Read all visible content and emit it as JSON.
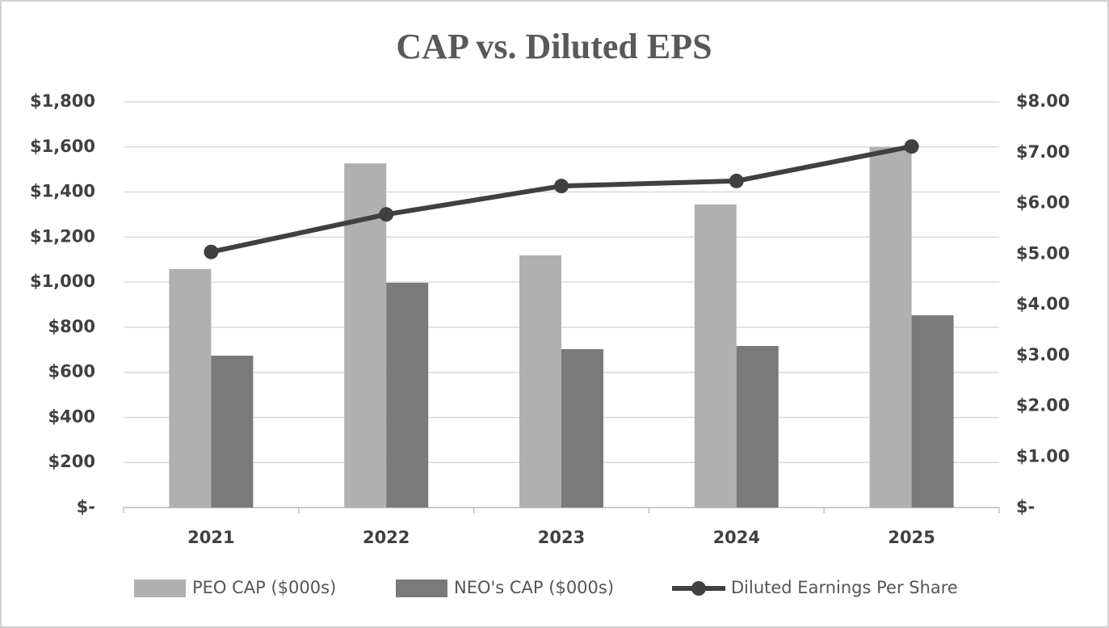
{
  "chart_data": {
    "type": "bar",
    "title": "CAP vs. Diluted EPS",
    "categories": [
      "2021",
      "2022",
      "2023",
      "2024",
      "2025"
    ],
    "series": [
      {
        "name": "PEO CAP ($000s)",
        "color": "#b0b0b0",
        "values": [
          1058,
          1527,
          1119,
          1345,
          1599
        ]
      },
      {
        "name": "NEO's CAP ($000s)",
        "color": "#7a7a7a",
        "values": [
          674,
          997,
          703,
          717,
          853
        ]
      },
      {
        "name": "Diluted Earnings Per Share",
        "color": "#404040",
        "type": "line",
        "axis": "y2",
        "values": [
          5.04,
          5.78,
          6.34,
          6.44,
          7.12
        ]
      }
    ],
    "ylim": [
      0,
      1800
    ],
    "yticks": [
      {
        "value": 0,
        "label": "$-"
      },
      {
        "value": 200,
        "label": "$200"
      },
      {
        "value": 400,
        "label": "$400"
      },
      {
        "value": 600,
        "label": "$600"
      },
      {
        "value": 800,
        "label": "$800"
      },
      {
        "value": 1000,
        "label": "$1,000"
      },
      {
        "value": 1200,
        "label": "$1,200"
      },
      {
        "value": 1400,
        "label": "$1,400"
      },
      {
        "value": 1600,
        "label": "$1,600"
      },
      {
        "value": 1800,
        "label": "$1,800"
      }
    ],
    "y2lim": [
      0,
      8
    ],
    "y2ticks": [
      {
        "value": 0,
        "label": "$-"
      },
      {
        "value": 1,
        "label": "$1.00"
      },
      {
        "value": 2,
        "label": "$2.00"
      },
      {
        "value": 3,
        "label": "$3.00"
      },
      {
        "value": 4,
        "label": "$4.00"
      },
      {
        "value": 5,
        "label": "$5.00"
      },
      {
        "value": 6,
        "label": "$6.00"
      },
      {
        "value": 7,
        "label": "$7.00"
      },
      {
        "value": 8,
        "label": "$8.00"
      }
    ],
    "grid": true,
    "legend": "bottom"
  }
}
